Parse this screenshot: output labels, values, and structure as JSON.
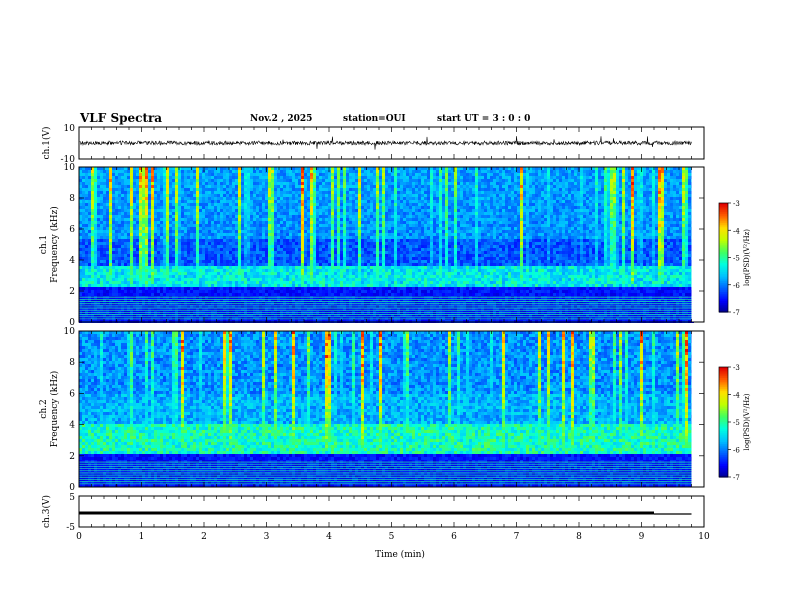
{
  "chart_data": {
    "type": "heatmap",
    "title": "VLF Spectra",
    "date": "Nov.2 , 2025",
    "station": "station=OUI",
    "start_ut": "start UT = 3 : 0 : 0",
    "xlabel": "Time (min)",
    "xlim": [
      0,
      10
    ],
    "x_ticks": [
      "0",
      "1",
      "2",
      "3",
      "4",
      "5",
      "6",
      "7",
      "8",
      "9",
      "10"
    ],
    "panels": [
      {
        "kind": "waveform",
        "ylabel": "ch.1(V)",
        "ylim": [
          -10,
          10
        ],
        "y_ticks": [
          "10",
          "-10"
        ],
        "baseline": 0,
        "data_end_min": 9.8
      },
      {
        "kind": "spectrogram",
        "ylabel_top": "ch.1",
        "ylabel": "Frequency (kHz)",
        "ylim": [
          0,
          10
        ],
        "y_ticks": [
          "0",
          "2",
          "4",
          "6",
          "8",
          "10"
        ],
        "data_end_min": 9.8,
        "colorbar": {
          "label": "log(PSD)(V²/Hz)",
          "range": [
            -7,
            -3
          ],
          "ticks": [
            "-3",
            "-4",
            "-5",
            "-6",
            "-7"
          ]
        }
      },
      {
        "kind": "spectrogram",
        "ylabel_top": "ch.2",
        "ylabel": "Frequency (kHz)",
        "ylim": [
          0,
          10
        ],
        "y_ticks": [
          "0",
          "2",
          "4",
          "6",
          "8",
          "10"
        ],
        "data_end_min": 9.8,
        "colorbar": {
          "label": "log(PSD)(V²/Hz)",
          "range": [
            -7,
            -3
          ],
          "ticks": [
            "-3",
            "-4",
            "-5",
            "-6",
            "-7"
          ]
        }
      },
      {
        "kind": "level",
        "ylabel": "ch.3(V)",
        "ylim": [
          -5,
          5
        ],
        "y_ticks": [
          "5",
          "-5"
        ],
        "series": [
          {
            "x": [
              0,
              9.2
            ],
            "y": [
              -0.5,
              -0.5
            ]
          },
          {
            "x": [
              9.2,
              9.8
            ],
            "y": [
              -0.8,
              -0.8
            ]
          }
        ]
      }
    ]
  },
  "colors": {
    "colormap": [
      "#00008a",
      "#0000ff",
      "#0060ff",
      "#00c0ff",
      "#00ffe0",
      "#40ff60",
      "#c0ff00",
      "#ffe000",
      "#ff6000",
      "#e00000",
      "#ffffff"
    ],
    "trace": "#000000"
  }
}
